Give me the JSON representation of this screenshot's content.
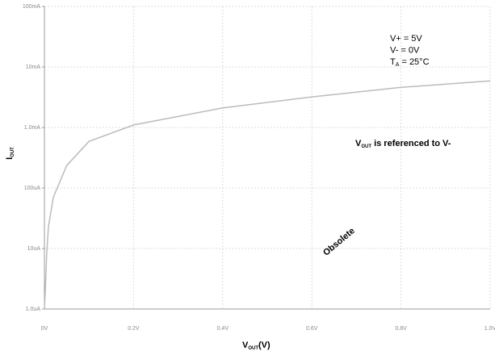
{
  "chart_data": {
    "type": "line",
    "xlabel": {
      "main": "V",
      "sub": "OUT",
      "rest": "(V)"
    },
    "ylabel": {
      "main": "I",
      "sub": "OUT"
    },
    "x": [
      0,
      0.002,
      0.005,
      0.009,
      0.02,
      0.05,
      0.1,
      0.2,
      0.4,
      0.6,
      0.8,
      1.0
    ],
    "series": [
      {
        "color": "#bbbbbb",
        "values": [
          1e-06,
          2e-06,
          8e-06,
          2.3e-05,
          7e-05,
          0.000235,
          0.00059,
          0.0011,
          0.0021,
          0.0032,
          0.0046,
          0.0059
        ]
      }
    ],
    "xlim": [
      0,
      1.0
    ],
    "xticks": [
      {
        "value": 0,
        "label": "0V"
      },
      {
        "value": 0.2,
        "label": "0.2V"
      },
      {
        "value": 0.4,
        "label": "0.4V"
      },
      {
        "value": 0.6,
        "label": "0.6V"
      },
      {
        "value": 0.8,
        "label": "0.8V"
      },
      {
        "value": 1.0,
        "label": "1.0V"
      }
    ],
    "ylim": [
      1e-06,
      0.1
    ],
    "yscale": "log",
    "yticks": [
      {
        "value": 1e-06,
        "label": "1.0uA"
      },
      {
        "value": 1e-05,
        "label": "10uA"
      },
      {
        "value": 0.0001,
        "label": "100uA"
      },
      {
        "value": 0.001,
        "label": "1.0mA"
      },
      {
        "value": 0.01,
        "label": "10mA"
      },
      {
        "value": 0.1,
        "label": "100mA"
      }
    ],
    "grid": true,
    "conditions": [
      {
        "main": "V+ = 5V"
      },
      {
        "main": "V- = 0V"
      },
      {
        "main": "T",
        "sub": "A",
        "rest": " = 25°C"
      }
    ],
    "note": {
      "main": "V",
      "sub": "OUT",
      "rest": " is referenced to V-"
    },
    "watermark": "Obsolete",
    "watermark_color": "#6a5cff"
  }
}
